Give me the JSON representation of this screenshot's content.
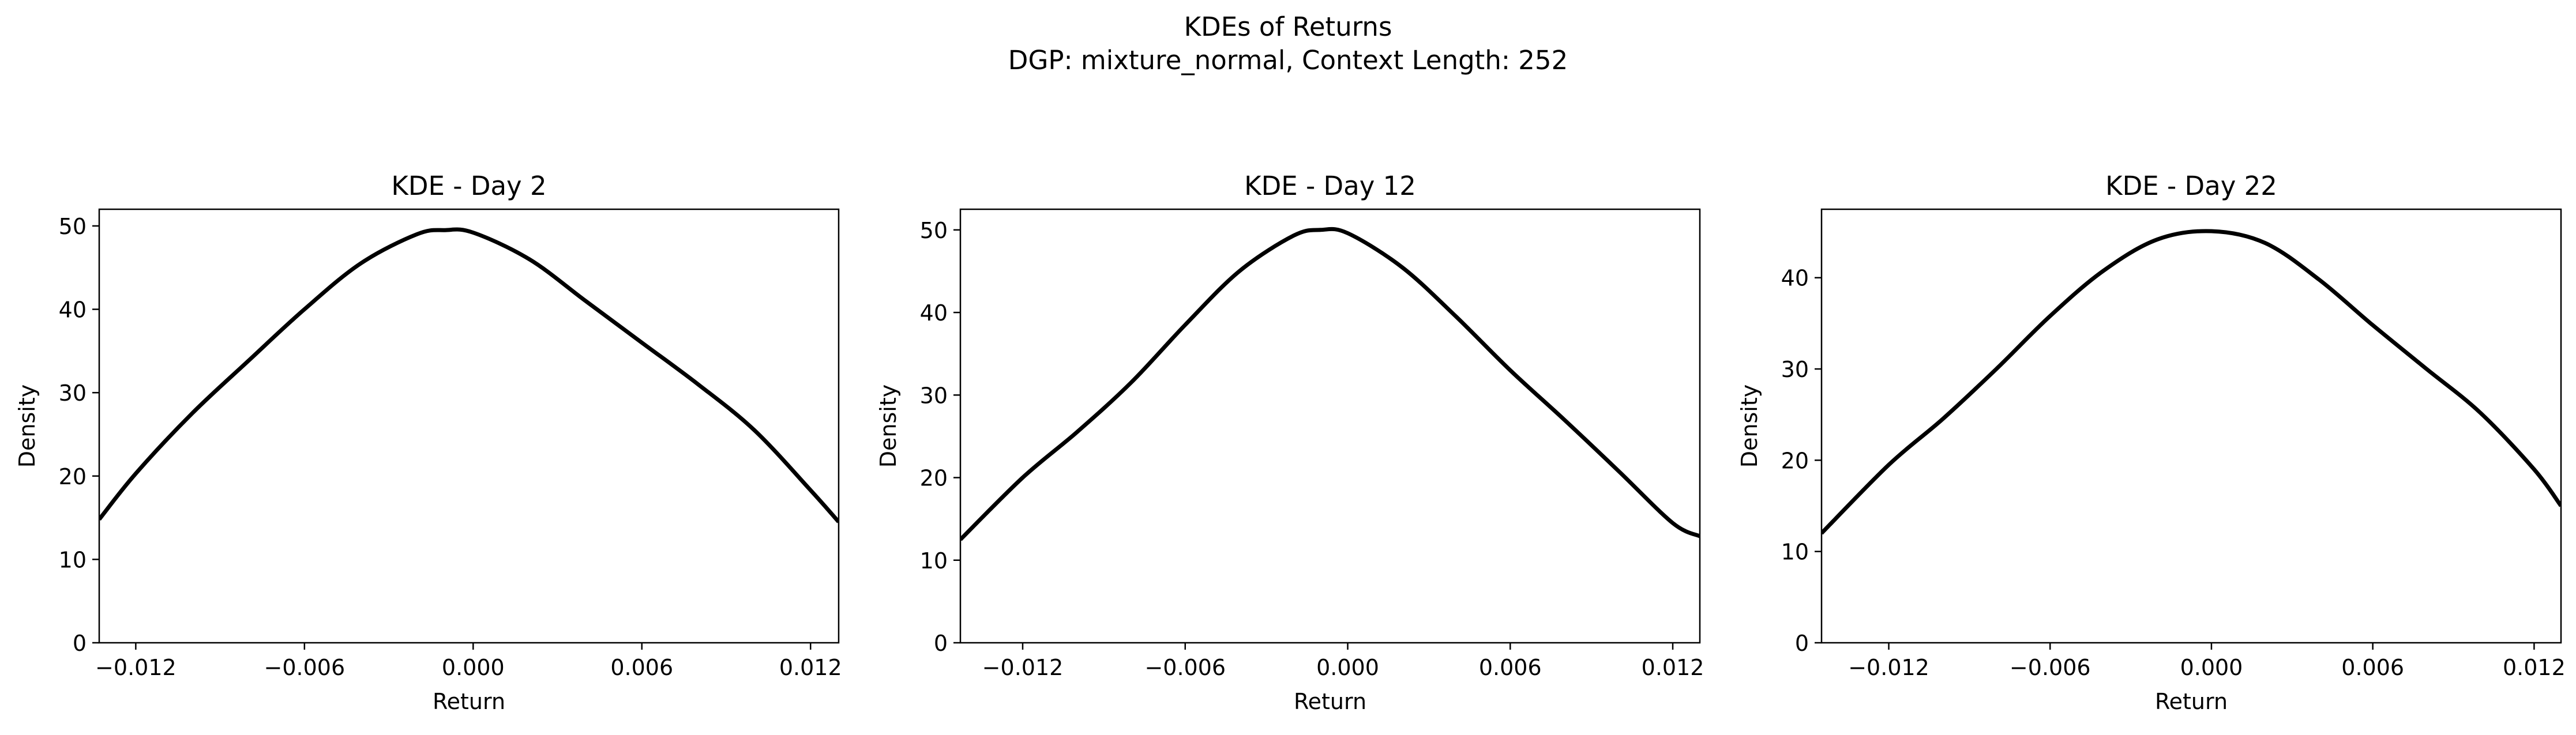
{
  "figure": {
    "title": "KDEs of Returns",
    "subtitle": "DGP: mixture_normal, Context Length: 252"
  },
  "chart_data": [
    {
      "type": "line",
      "title": "KDE - Day 2",
      "xlabel": "Return",
      "ylabel": "Density",
      "xlim": [
        -0.0133,
        0.013
      ],
      "ylim": [
        0,
        52
      ],
      "xticks": [
        -0.012,
        -0.006,
        0.0,
        0.006,
        0.012
      ],
      "xtick_labels": [
        "−0.012",
        "−0.006",
        "0.000",
        "0.006",
        "0.012"
      ],
      "yticks": [
        0,
        10,
        20,
        30,
        40,
        50
      ],
      "ytick_labels": [
        "0",
        "10",
        "20",
        "30",
        "40",
        "50"
      ],
      "grid": false,
      "line_color": "#000000",
      "series": [
        {
          "x": [
            -0.0133,
            -0.012,
            -0.01,
            -0.008,
            -0.006,
            -0.004,
            -0.002,
            -0.001,
            0.0,
            0.002,
            0.004,
            0.006,
            0.008,
            0.01,
            0.012,
            0.013
          ],
          "y": [
            14.8,
            20.3,
            27.5,
            33.8,
            40.0,
            45.5,
            49.0,
            49.5,
            49.2,
            46.0,
            41.0,
            36.0,
            31.0,
            25.5,
            18.3,
            14.5
          ]
        }
      ]
    },
    {
      "type": "line",
      "title": "KDE - Day 12",
      "xlabel": "Return",
      "ylabel": "Density",
      "xlim": [
        -0.0143,
        0.013
      ],
      "ylim": [
        0,
        52.5
      ],
      "xticks": [
        -0.012,
        -0.006,
        0.0,
        0.006,
        0.012
      ],
      "xtick_labels": [
        "−0.012",
        "−0.006",
        "0.000",
        "0.006",
        "0.012"
      ],
      "yticks": [
        0,
        10,
        20,
        30,
        40,
        50
      ],
      "ytick_labels": [
        "0",
        "10",
        "20",
        "30",
        "40",
        "50"
      ],
      "grid": false,
      "line_color": "#000000",
      "series": [
        {
          "x": [
            -0.0143,
            -0.012,
            -0.01,
            -0.008,
            -0.006,
            -0.004,
            -0.002,
            -0.001,
            0.0,
            0.002,
            0.004,
            0.006,
            0.008,
            0.01,
            0.012,
            0.013
          ],
          "y": [
            12.5,
            20.0,
            25.5,
            31.5,
            38.5,
            45.0,
            49.3,
            50.0,
            49.6,
            45.5,
            39.5,
            33.0,
            27.0,
            20.8,
            14.5,
            12.9
          ]
        }
      ]
    },
    {
      "type": "line",
      "title": "KDE - Day 22",
      "xlabel": "Return",
      "ylabel": "Density",
      "xlim": [
        -0.0145,
        0.013
      ],
      "ylim": [
        0,
        47.5
      ],
      "xticks": [
        -0.012,
        -0.006,
        0.0,
        0.006,
        0.012
      ],
      "xtick_labels": [
        "−0.012",
        "−0.006",
        "0.000",
        "0.006",
        "0.012"
      ],
      "yticks": [
        0,
        10,
        20,
        30,
        40
      ],
      "ytick_labels": [
        "0",
        "10",
        "20",
        "30",
        "40"
      ],
      "grid": false,
      "line_color": "#000000",
      "series": [
        {
          "x": [
            -0.0145,
            -0.012,
            -0.01,
            -0.008,
            -0.006,
            -0.004,
            -0.002,
            0.0,
            0.002,
            0.004,
            0.006,
            0.008,
            0.01,
            0.012,
            0.013
          ],
          "y": [
            12.0,
            19.5,
            24.5,
            30.0,
            35.8,
            40.8,
            44.2,
            45.1,
            43.8,
            39.8,
            34.8,
            30.0,
            25.2,
            19.0,
            15.0
          ]
        }
      ]
    }
  ]
}
